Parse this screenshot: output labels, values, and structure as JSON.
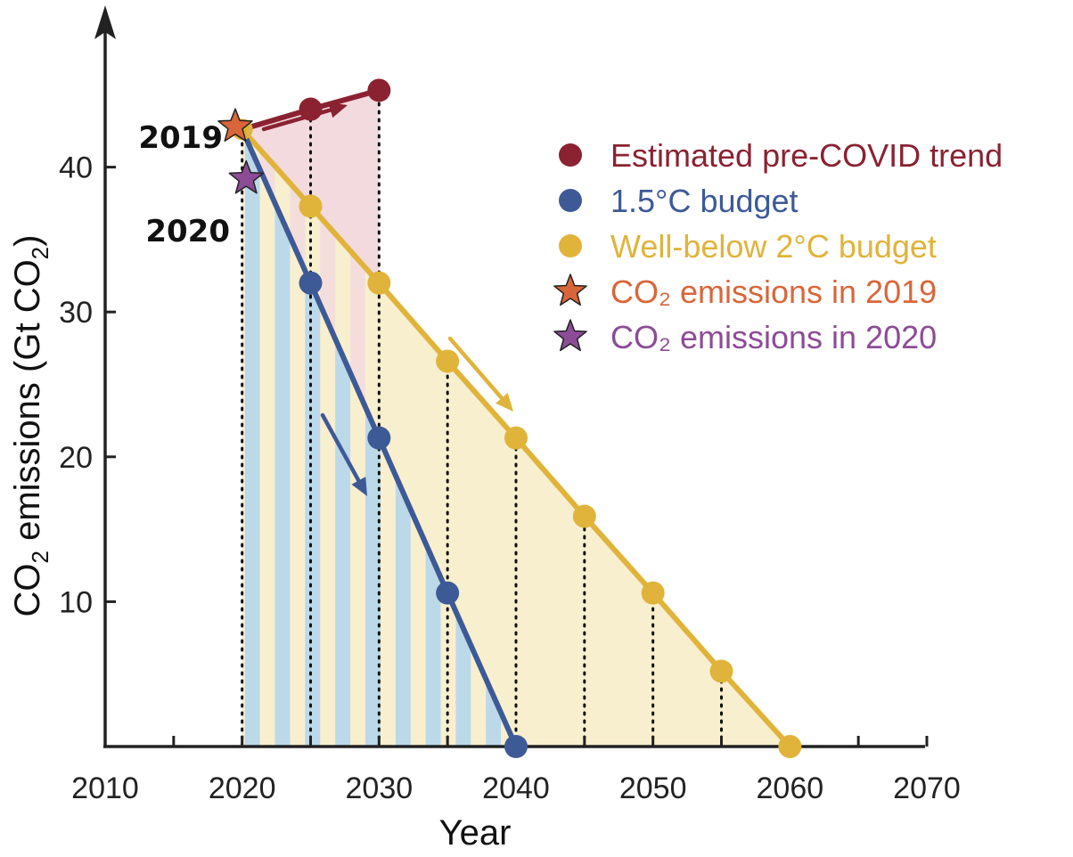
{
  "chart_data": {
    "type": "line",
    "xlabel": "Year",
    "ylabel_main": "CO",
    "ylabel_sub1": "2",
    "ylabel_mid": " emissions (Gt CO",
    "ylabel_sub2": "2",
    "ylabel_end": ")",
    "xlim": [
      2010,
      2070
    ],
    "ylim": [
      0,
      50
    ],
    "x_ticks": [
      2010,
      2020,
      2030,
      2040,
      2050,
      2060,
      2070
    ],
    "y_ticks": [
      10,
      20,
      30,
      40
    ],
    "grid": false,
    "legend_position": "top-right",
    "series": [
      {
        "name": "Estimated pre-COVID trend",
        "color": "#8a2232",
        "fill": "#f3dade",
        "points": [
          [
            2020,
            42.6
          ],
          [
            2025,
            44.0
          ],
          [
            2030,
            45.3
          ]
        ]
      },
      {
        "name": "1.5°C budget",
        "color": "#3d5a96",
        "fill": "#bcd9e9",
        "points": [
          [
            2020,
            42.6
          ],
          [
            2025,
            32.0
          ],
          [
            2030,
            21.3
          ],
          [
            2035,
            10.6
          ],
          [
            2040,
            0
          ]
        ]
      },
      {
        "name": "Well-below 2°C budget",
        "color": "#e0b33a",
        "fill": "#f8efcf",
        "points": [
          [
            2020,
            42.6
          ],
          [
            2025,
            37.3
          ],
          [
            2030,
            32.0
          ],
          [
            2035,
            26.6
          ],
          [
            2040,
            21.3
          ],
          [
            2045,
            15.9
          ],
          [
            2050,
            10.6
          ],
          [
            2055,
            5.2
          ],
          [
            2060,
            0
          ]
        ]
      }
    ],
    "markers": [
      {
        "name": "CO₂ emissions in 2019",
        "label": "2019",
        "x": 2019.5,
        "y": 42.8,
        "color": "#d9663a"
      },
      {
        "name": "CO₂ emissions in 2020",
        "label": "2020",
        "x": 2020.3,
        "y": 39.2,
        "color": "#8c4c96"
      }
    ],
    "dotted_guides_x": [
      2020,
      2025,
      2030,
      2035,
      2040,
      2045,
      2050,
      2055
    ]
  },
  "legend": [
    {
      "label": "Estimated pre-COVID trend",
      "shape": "circle",
      "color": "#8a2232"
    },
    {
      "label": "1.5°C budget",
      "shape": "circle",
      "color": "#3d5a96"
    },
    {
      "label": "Well-below 2°C budget",
      "shape": "circle",
      "color": "#e0b33a"
    },
    {
      "label": "CO₂ emissions in 2019",
      "shape": "star",
      "color": "#d9663a"
    },
    {
      "label": "CO₂ emissions in 2020",
      "shape": "star",
      "color": "#8c4c96"
    }
  ]
}
